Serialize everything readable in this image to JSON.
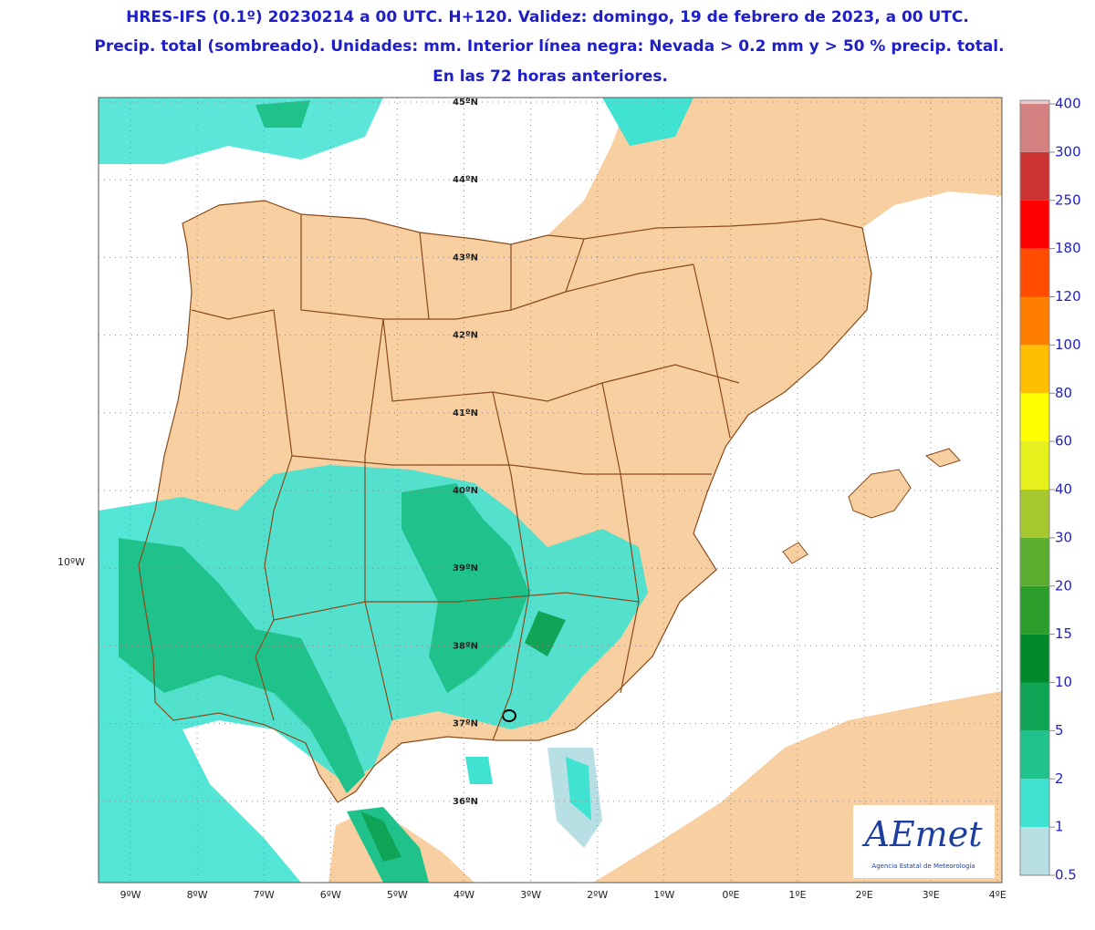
{
  "title_lines": [
    "HRES-IFS (0.1º) 20230214 a 00 UTC. H+120. Validez: domingo, 19 de febrero de 2023, a 00 UTC.",
    "Precip. total (sombreado). Unidades: mm. Interior línea negra: Nevada > 0.2 mm y > 50 % precip. total.",
    "En las 72 horas anteriores."
  ],
  "lat_labels": [
    "45ºN",
    "44ºN",
    "43ºN",
    "42ºN",
    "41ºN",
    "40ºN",
    "39ºN",
    "38ºN",
    "37ºN",
    "36ºN"
  ],
  "left_label": "10ºW",
  "lon_labels": [
    "9ºW",
    "8ºW",
    "7ºW",
    "6ºW",
    "5ºW",
    "4ºW",
    "3ºW",
    "2ºW",
    "1ºW",
    "0ºE",
    "1ºE",
    "2ºE",
    "3ºE",
    "4ºE"
  ],
  "colorbar": {
    "levels": [
      0.5,
      1,
      2,
      5,
      10,
      15,
      20,
      30,
      40,
      60,
      80,
      100,
      120,
      180,
      250,
      300,
      400
    ],
    "colors": [
      "#b8dfe4",
      "#40e2d2",
      "#20c28c",
      "#10a456",
      "#008a2c",
      "#2c9e2c",
      "#5cae30",
      "#a4c82e",
      "#e6f01c",
      "#ffff00",
      "#ffbe00",
      "#ff7e00",
      "#ff4c00",
      "#ff0000",
      "#cc3434",
      "#d28080",
      "#eccaca"
    ]
  },
  "logo": {
    "name": "AEmet",
    "subtitle": "Agencia Estatal de Meteorología"
  }
}
